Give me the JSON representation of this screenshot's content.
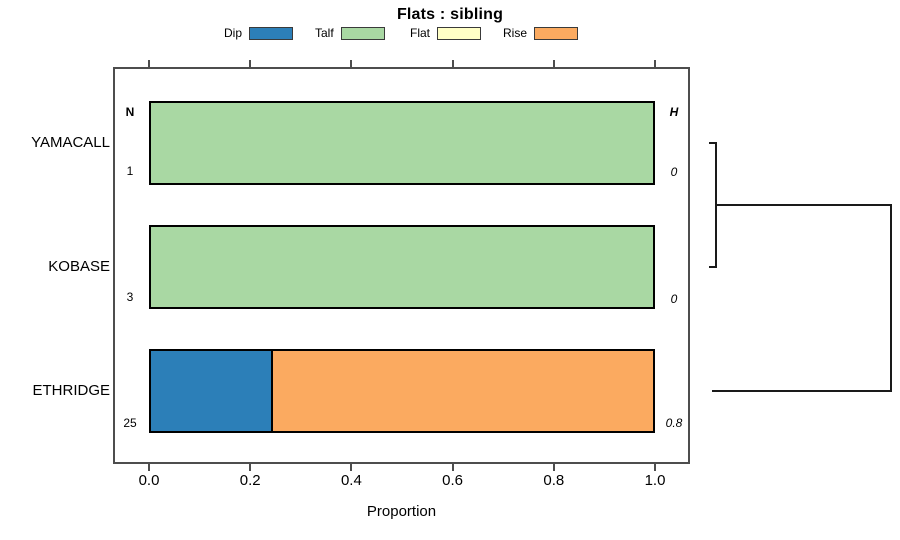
{
  "title": "Flats : sibling",
  "legend": {
    "items": [
      {
        "label": "Dip",
        "color": "#2c7fb8"
      },
      {
        "label": "Talf",
        "color": "#a9d8a3"
      },
      {
        "label": "Flat",
        "color": "#ffffc6"
      },
      {
        "label": "Rise",
        "color": "#fbaa60"
      }
    ]
  },
  "columns": {
    "n_header": "N",
    "h_header": "H"
  },
  "rows": [
    {
      "name": "YAMACALL",
      "n": "1",
      "h": "0",
      "segments": [
        {
          "category": "Talf",
          "value": 1.0
        }
      ]
    },
    {
      "name": "KOBASE",
      "n": "3",
      "h": "0",
      "segments": [
        {
          "category": "Talf",
          "value": 1.0
        }
      ]
    },
    {
      "name": "ETHRIDGE",
      "n": "25",
      "h": "0.8",
      "segments": [
        {
          "category": "Dip",
          "value": 0.24
        },
        {
          "category": "Rise",
          "value": 0.76
        }
      ]
    }
  ],
  "axis": {
    "ticks": [
      "0.0",
      "0.2",
      "0.4",
      "0.6",
      "0.8",
      "1.0"
    ],
    "xlabel": "Proportion"
  },
  "chart_data": {
    "type": "bar",
    "subtype": "horizontal-stacked-proportion",
    "title": "Flats : sibling",
    "categories": [
      "YAMACALL",
      "KOBASE",
      "ETHRIDGE"
    ],
    "series": [
      {
        "name": "Dip",
        "values": [
          0,
          0,
          0.24
        ],
        "color": "#2c7fb8"
      },
      {
        "name": "Talf",
        "values": [
          1,
          1,
          0
        ],
        "color": "#a9d8a3"
      },
      {
        "name": "Flat",
        "values": [
          0,
          0,
          0
        ],
        "color": "#ffffc6"
      },
      {
        "name": "Rise",
        "values": [
          0,
          0,
          0.76
        ],
        "color": "#fbaa60"
      }
    ],
    "n_values": [
      1,
      3,
      25
    ],
    "h_values": [
      "0",
      "0",
      "0.8"
    ],
    "xlabel": "Proportion",
    "xlim": [
      0,
      1
    ],
    "x_ticks": [
      0.0,
      0.2,
      0.4,
      0.6,
      0.8,
      1.0
    ],
    "grid": false,
    "legend_position": "top",
    "annotations": "dendrogram on right: YAMACALL and KOBASE merge at near-zero height, their cluster joins ETHRIDGE at a larger height"
  }
}
